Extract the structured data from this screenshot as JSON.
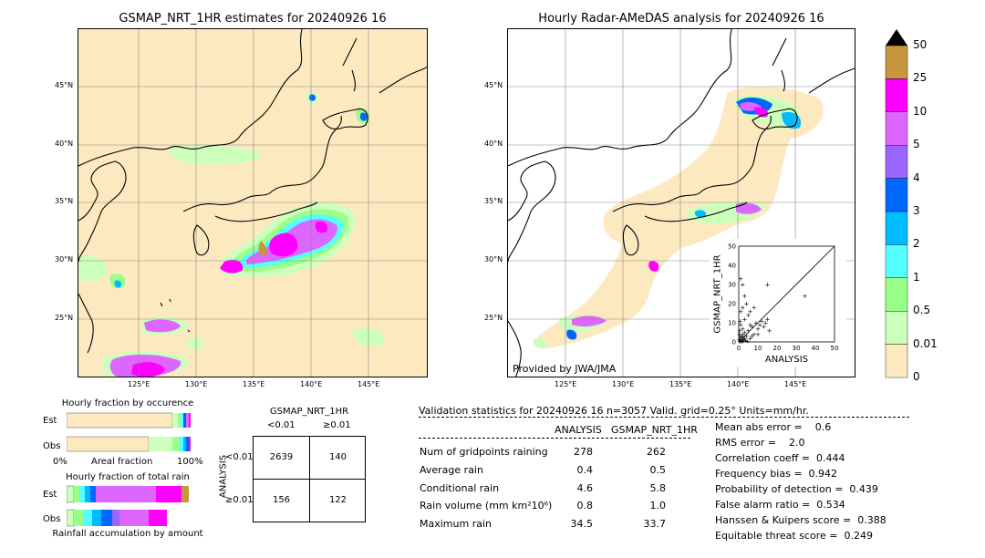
{
  "left_map": {
    "title": "GSMAP_NRT_1HR estimates for 20240926 16",
    "lat_ticks": [
      "45°N",
      "40°N",
      "35°N",
      "30°N",
      "25°N"
    ],
    "lon_ticks": [
      "125°E",
      "130°E",
      "135°E",
      "140°E",
      "145°E"
    ]
  },
  "right_map": {
    "title": "Hourly Radar-AMeDAS analysis for 20240926 16",
    "lat_ticks": [
      "45°N",
      "40°N",
      "35°N",
      "30°N",
      "25°N"
    ],
    "lon_ticks": [
      "125°E",
      "130°E",
      "135°E",
      "140°E",
      "145°E"
    ],
    "credit": "Provided by JWA/JMA"
  },
  "colorbar": {
    "levels": [
      "50",
      "25",
      "10",
      "5",
      "4",
      "3",
      "2",
      "1",
      "0.5",
      "0.01",
      "0"
    ],
    "colors": [
      "#c8963c",
      "#ff00ff",
      "#dd66ff",
      "#9966ff",
      "#0066ff",
      "#00bbff",
      "#55ffff",
      "#99ff88",
      "#ccffbb",
      "#ffe9c0"
    ]
  },
  "chart_data": [
    {
      "type": "scatter",
      "xlabel": "ANALYSIS",
      "ylabel": "GSMAP_NRT_1HR",
      "xlim": [
        0,
        50
      ],
      "ylim": [
        0,
        50
      ],
      "ticks": [
        "0",
        "10",
        "20",
        "30",
        "40",
        "50"
      ],
      "points": [
        [
          0.5,
          0.3
        ],
        [
          1,
          0.5
        ],
        [
          1.5,
          1
        ],
        [
          2,
          0.4
        ],
        [
          2.5,
          1.5
        ],
        [
          3,
          2
        ],
        [
          0.8,
          2.5
        ],
        [
          1.2,
          3
        ],
        [
          2,
          4
        ],
        [
          3,
          5
        ],
        [
          4,
          3
        ],
        [
          5,
          6
        ],
        [
          6,
          2
        ],
        [
          7,
          8
        ],
        [
          8,
          4
        ],
        [
          9,
          10
        ],
        [
          10,
          7
        ],
        [
          12,
          11
        ],
        [
          13,
          8
        ],
        [
          15,
          12
        ],
        [
          16,
          6
        ],
        [
          3,
          12
        ],
        [
          5,
          14
        ],
        [
          4,
          20
        ],
        [
          3,
          24
        ],
        [
          2,
          30
        ],
        [
          1,
          33
        ],
        [
          15,
          30
        ],
        [
          34.5,
          24
        ],
        [
          6,
          16
        ],
        [
          8,
          18
        ],
        [
          10,
          4
        ],
        [
          0.5,
          6
        ],
        [
          1,
          9
        ],
        [
          2,
          7
        ],
        [
          0.3,
          1.5
        ],
        [
          1.8,
          0.2
        ],
        [
          2.2,
          2.8
        ],
        [
          3.5,
          1
        ],
        [
          4.5,
          0.5
        ],
        [
          0.4,
          4
        ],
        [
          6,
          9
        ],
        [
          7,
          3
        ],
        [
          11,
          9
        ],
        [
          14,
          10
        ],
        [
          1,
          16
        ],
        [
          2,
          18
        ],
        [
          0.6,
          11
        ]
      ]
    },
    {
      "type": "bar",
      "title": "Hourly fraction by occurence",
      "categories": [
        "Est",
        "Obs"
      ],
      "xlabel_left": "0%",
      "xlabel_mid": "Areal fraction",
      "xlabel_right": "100%",
      "series": [
        {
          "values": [
            0.9,
            0.97
          ]
        }
      ]
    },
    {
      "type": "bar",
      "title": "Hourly fraction of total rain",
      "categories": [
        "Est",
        "Obs"
      ],
      "xlabel": "Rainfall accumulation by amount"
    }
  ],
  "contingency": {
    "title": "GSMAP_NRT_1HR",
    "col_lt": "<0.01",
    "col_ge": "≥0.01",
    "row_axis": "ANALYSIS",
    "row_lt": "<0.01",
    "row_ge": "≥0.01",
    "a": "2639",
    "b": "140",
    "c": "156",
    "d": "122"
  },
  "validation": {
    "header": "Validation statistics for 20240926 16  n=3057 Valid. grid=0.25° Units=mm/hr.",
    "col_analysis": "ANALYSIS",
    "col_gsmap": "GSMAP_NRT_1HR",
    "rows": [
      {
        "label": "Num of gridpoints raining",
        "analysis": "278",
        "gsmap": "262"
      },
      {
        "label": "Average rain",
        "analysis": "0.4",
        "gsmap": "0.5"
      },
      {
        "label": "Conditional rain",
        "analysis": "4.6",
        "gsmap": "5.8"
      },
      {
        "label": "Rain volume (mm km²10⁶)",
        "analysis": "0.8",
        "gsmap": "1.0"
      },
      {
        "label": "Maximum rain",
        "analysis": "34.5",
        "gsmap": "33.7"
      }
    ],
    "scores": [
      "Mean abs error =    0.6",
      "RMS error =    2.0",
      "Correlation coeff =  0.444",
      "Frequency bias =  0.942",
      "Probability of detection =  0.439",
      "False alarm ratio =  0.534",
      "Hanssen & Kuipers score =  0.388",
      "Equitable threat score =  0.249"
    ]
  }
}
